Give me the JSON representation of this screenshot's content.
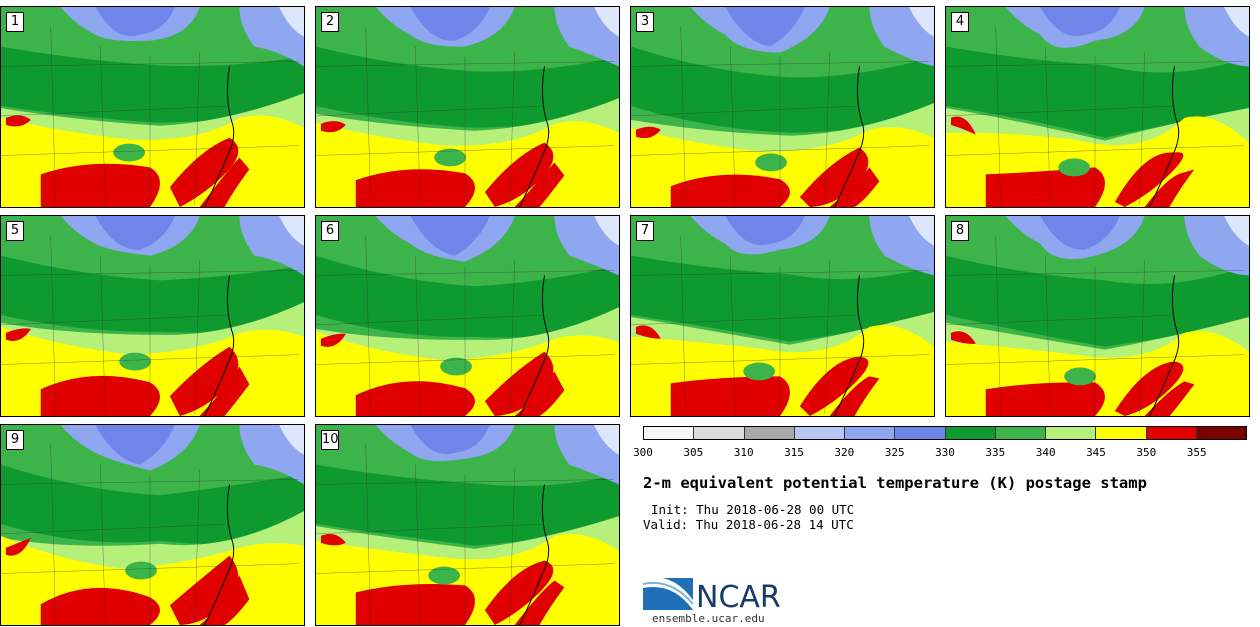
{
  "panels": [
    {
      "id": 1,
      "label": "1"
    },
    {
      "id": 2,
      "label": "2"
    },
    {
      "id": 3,
      "label": "3"
    },
    {
      "id": 4,
      "label": "4"
    },
    {
      "id": 5,
      "label": "5"
    },
    {
      "id": 6,
      "label": "6"
    },
    {
      "id": 7,
      "label": "7"
    },
    {
      "id": 8,
      "label": "8"
    },
    {
      "id": 9,
      "label": "9"
    },
    {
      "id": 10,
      "label": "10"
    }
  ],
  "colorbar": {
    "ticks": [
      "300",
      "305",
      "310",
      "315",
      "320",
      "325",
      "330",
      "335",
      "340",
      "345",
      "350",
      "355"
    ],
    "colors": [
      "#f7f7f7",
      "#dcdcdc",
      "#a9a9a9",
      "#b8c8f4",
      "#8fa6f0",
      "#6f85ea",
      "#0f9a30",
      "#3cb44a",
      "#b4f07a",
      "#ffff00",
      "#e00000",
      "#7a0000"
    ]
  },
  "map_colors": {
    "blue": "#6f85ea",
    "light_blue": "#8fa6f0",
    "dark_green": "#0f9a30",
    "green": "#3cb44a",
    "light_green": "#b4f07a",
    "yellow": "#ffff00",
    "red": "#e00000"
  },
  "title": "2-m equivalent potential temperature (K) postage stamp",
  "init": "Init: Thu 2018-06-28 00 UTC",
  "valid": "Valid: Thu 2018-06-28 14 UTC",
  "logo": {
    "text": "NCAR",
    "url": "ensemble.ucar.edu"
  }
}
